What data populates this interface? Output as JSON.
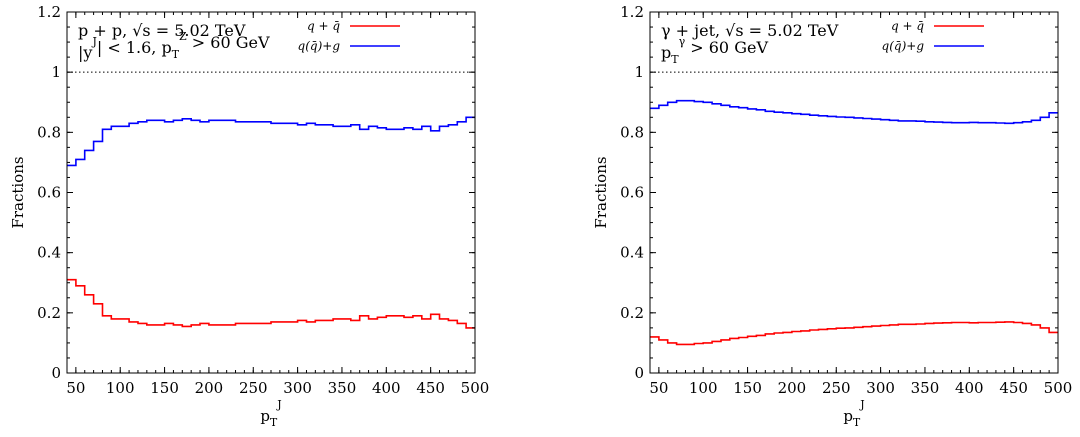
{
  "chart_data": [
    {
      "type": "line",
      "step": true,
      "x_edges": [
        40,
        50,
        60,
        70,
        80,
        90,
        100,
        110,
        120,
        130,
        140,
        150,
        160,
        170,
        180,
        190,
        200,
        210,
        220,
        230,
        240,
        250,
        260,
        270,
        280,
        290,
        300,
        310,
        320,
        330,
        340,
        350,
        360,
        370,
        380,
        390,
        400,
        410,
        420,
        430,
        440,
        450,
        460,
        470,
        480,
        490,
        500
      ],
      "series": [
        {
          "name": "q + q̄",
          "color": "#ff0000",
          "values": [
            0.31,
            0.29,
            0.26,
            0.23,
            0.19,
            0.18,
            0.18,
            0.17,
            0.165,
            0.16,
            0.16,
            0.165,
            0.16,
            0.155,
            0.16,
            0.165,
            0.16,
            0.16,
            0.16,
            0.165,
            0.165,
            0.165,
            0.165,
            0.17,
            0.17,
            0.17,
            0.175,
            0.17,
            0.175,
            0.175,
            0.18,
            0.18,
            0.175,
            0.19,
            0.18,
            0.185,
            0.19,
            0.19,
            0.185,
            0.19,
            0.18,
            0.195,
            0.18,
            0.175,
            0.165,
            0.15
          ]
        },
        {
          "name": "q(q̄)+g",
          "color": "#0000ff",
          "values": [
            0.69,
            0.71,
            0.74,
            0.77,
            0.81,
            0.82,
            0.82,
            0.83,
            0.835,
            0.84,
            0.84,
            0.835,
            0.84,
            0.845,
            0.84,
            0.835,
            0.84,
            0.84,
            0.84,
            0.835,
            0.835,
            0.835,
            0.835,
            0.83,
            0.83,
            0.83,
            0.825,
            0.83,
            0.825,
            0.825,
            0.82,
            0.82,
            0.825,
            0.81,
            0.82,
            0.815,
            0.81,
            0.81,
            0.815,
            0.81,
            0.82,
            0.805,
            0.82,
            0.825,
            0.835,
            0.85
          ]
        }
      ],
      "xlim": [
        40,
        500
      ],
      "ylim": [
        0,
        1.2
      ],
      "xticks": [
        50,
        100,
        150,
        200,
        250,
        300,
        350,
        400,
        450,
        500
      ],
      "yticks": [
        0,
        0.2,
        0.4,
        0.6,
        0.8,
        1,
        1.2
      ],
      "ytick_labels": [
        "0",
        "0.2",
        "0.4",
        "0.6",
        "0.8",
        "1",
        "1.2"
      ],
      "ylabel": "Fractions",
      "xlabel": "p_T^J",
      "reference_line": 1,
      "annotations": [
        "p + p, √s = 5.02 TeV",
        "|y^J| < 1.6,  p_T^Z > 60 GeV"
      ],
      "legend_position": "top-right",
      "grid": false
    },
    {
      "type": "line",
      "step": true,
      "x_edges": [
        40,
        50,
        60,
        70,
        80,
        90,
        100,
        110,
        120,
        130,
        140,
        150,
        160,
        170,
        180,
        190,
        200,
        210,
        220,
        230,
        240,
        250,
        260,
        270,
        280,
        290,
        300,
        310,
        320,
        330,
        340,
        350,
        360,
        370,
        380,
        390,
        400,
        410,
        420,
        430,
        440,
        450,
        460,
        470,
        480,
        490,
        500
      ],
      "series": [
        {
          "name": "q + q̄",
          "color": "#ff0000",
          "values": [
            0.12,
            0.11,
            0.1,
            0.095,
            0.095,
            0.098,
            0.1,
            0.105,
            0.11,
            0.115,
            0.118,
            0.122,
            0.125,
            0.13,
            0.133,
            0.135,
            0.138,
            0.14,
            0.143,
            0.145,
            0.147,
            0.149,
            0.15,
            0.152,
            0.154,
            0.156,
            0.158,
            0.16,
            0.162,
            0.162,
            0.163,
            0.165,
            0.166,
            0.167,
            0.168,
            0.168,
            0.167,
            0.168,
            0.168,
            0.169,
            0.17,
            0.168,
            0.165,
            0.16,
            0.15,
            0.135
          ]
        },
        {
          "name": "q(q̄)+g",
          "color": "#0000ff",
          "values": [
            0.88,
            0.89,
            0.9,
            0.905,
            0.905,
            0.902,
            0.9,
            0.895,
            0.89,
            0.885,
            0.882,
            0.878,
            0.875,
            0.87,
            0.867,
            0.865,
            0.862,
            0.86,
            0.857,
            0.855,
            0.853,
            0.851,
            0.85,
            0.848,
            0.846,
            0.844,
            0.842,
            0.84,
            0.838,
            0.838,
            0.837,
            0.835,
            0.834,
            0.833,
            0.832,
            0.832,
            0.833,
            0.832,
            0.832,
            0.831,
            0.83,
            0.832,
            0.835,
            0.84,
            0.85,
            0.865
          ]
        }
      ],
      "xlim": [
        40,
        500
      ],
      "ylim": [
        0,
        1.2
      ],
      "xticks": [
        50,
        100,
        150,
        200,
        250,
        300,
        350,
        400,
        450,
        500
      ],
      "yticks": [
        0,
        0.2,
        0.4,
        0.6,
        0.8,
        1,
        1.2
      ],
      "ytick_labels": [
        "0",
        "0.2",
        "0.4",
        "0.6",
        "0.8",
        "1",
        "1.2"
      ],
      "ylabel": "Fractions",
      "xlabel": "p_T^J",
      "reference_line": 1,
      "annotations": [
        "γ + jet, √s = 5.02 TeV",
        "p_T^γ > 60 GeV"
      ],
      "legend_position": "top-right",
      "grid": false
    }
  ]
}
